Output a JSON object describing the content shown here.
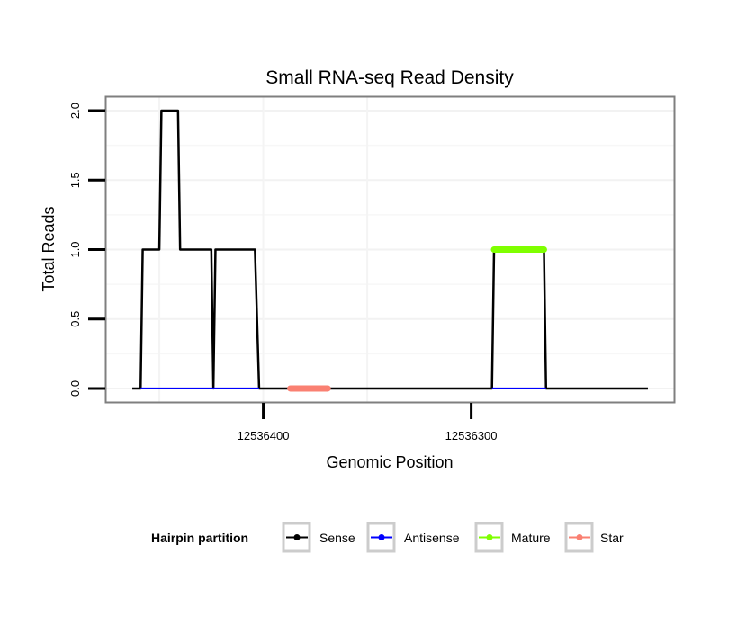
{
  "chart_data": {
    "type": "line",
    "title": "Small RNA-seq Read Density",
    "xlabel": "Genomic Position",
    "ylabel": "Total Reads",
    "xlim": [
      12536476,
      12536202
    ],
    "x_reversed": true,
    "ylim": [
      -0.104,
      2.104
    ],
    "x_ticks": [
      12536400,
      12536300
    ],
    "x_tick_labels": [
      "12536400",
      "12536300"
    ],
    "y_ticks": [
      0,
      0.5,
      1,
      1.5,
      2
    ],
    "y_tick_labels": [
      "0.0",
      "0.5",
      "1.0",
      "1.5",
      "2.0"
    ],
    "grid": true,
    "legend": {
      "title": "Hairpin partition",
      "placement": "bottom",
      "entries": [
        "Sense",
        "Antisense",
        "Mature",
        "Star"
      ]
    },
    "series": [
      {
        "name": "Sense",
        "color": "#000000",
        "points": [
          [
            12536463,
            0
          ],
          [
            12536459,
            0
          ],
          [
            12536458,
            1
          ],
          [
            12536450,
            1
          ],
          [
            12536449,
            2
          ],
          [
            12536441,
            2
          ],
          [
            12536440,
            1
          ],
          [
            12536425,
            1
          ],
          [
            12536424,
            0
          ],
          [
            12536423,
            1
          ],
          [
            12536404,
            1
          ],
          [
            12536402,
            0
          ],
          [
            12536290,
            0
          ],
          [
            12536289,
            1
          ],
          [
            12536265,
            1
          ],
          [
            12536264,
            0
          ],
          [
            12536215,
            0
          ]
        ]
      },
      {
        "name": "Antisense",
        "color": "#0000ff",
        "segments": [
          [
            [
              12536459,
              0
            ],
            [
              12536402,
              0
            ]
          ],
          [
            [
              12536290,
              0
            ],
            [
              12536264,
              0
            ]
          ]
        ]
      },
      {
        "name": "Mature",
        "color": "#7fff00",
        "segments": [
          [
            [
              12536289,
              1
            ],
            [
              12536265,
              1
            ]
          ]
        ]
      },
      {
        "name": "Star",
        "color": "#fa8072",
        "segments": [
          [
            [
              12536387,
              0
            ],
            [
              12536369,
              0
            ]
          ]
        ]
      }
    ]
  }
}
